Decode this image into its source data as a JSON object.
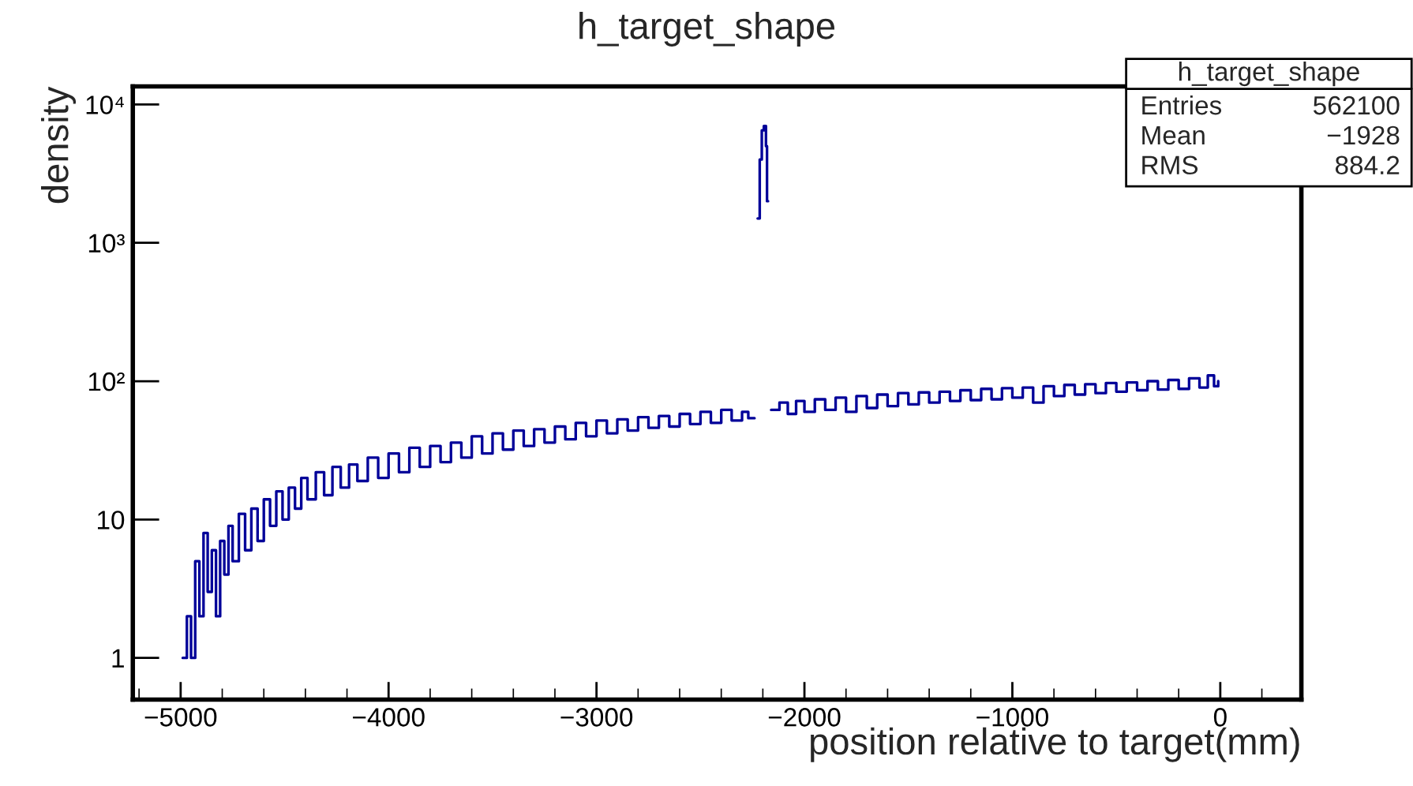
{
  "chart_data": {
    "type": "step",
    "title": "h_target_shape",
    "xlabel": "position relative to target(mm)",
    "ylabel": "density",
    "annotations": [
      "h_target_shape",
      "Entries",
      "562100",
      "Mean",
      "−1928",
      "RMS",
      "884.2"
    ],
    "log": "y",
    "grid": false,
    "legend": false,
    "xlim": [
      -5230,
      390
    ],
    "ylim": [
      0.5,
      13500
    ],
    "xticks": [
      {
        "value": -5000,
        "label": "−5000"
      },
      {
        "value": -4000,
        "label": "−4000"
      },
      {
        "value": -3000,
        "label": "−3000"
      },
      {
        "value": -2000,
        "label": "−2000"
      },
      {
        "value": -1000,
        "label": "−1000"
      },
      0
    ],
    "yticks": [
      1,
      10,
      {
        "value": 100,
        "label": "10²"
      },
      {
        "value": 1000,
        "label": "10³"
      },
      {
        "value": 10000,
        "label": "10⁴"
      }
    ],
    "series": [
      {
        "color": "#000099",
        "x": [
          -4990,
          -4970,
          -4950,
          -4930,
          -4910,
          -4890,
          -4870,
          -4850,
          -4830,
          -4810,
          -4790,
          -4770,
          -4750,
          -4720,
          -4690,
          -4660,
          -4630,
          -4600,
          -4570,
          -4540,
          -4510,
          -4480,
          -4450,
          -4420,
          -4390,
          -4350,
          -4310,
          -4270,
          -4230,
          -4190,
          -4150,
          -4100,
          -4050,
          -4000,
          -3950,
          -3900,
          -3850,
          -3800,
          -3750,
          -3700,
          -3650,
          -3600,
          -3550,
          -3500,
          -3450,
          -3400,
          -3350,
          -3300,
          -3250,
          -3200,
          -3150,
          -3100,
          -3050,
          -3000,
          -2950,
          -2900,
          -2850,
          -2800,
          -2750,
          -2700,
          -2650,
          -2600,
          -2550,
          -2500,
          -2450,
          -2400,
          -2350,
          -2300,
          -2270,
          -2240,
          -2225,
          -2215,
          -2205,
          -2195,
          -2185,
          -2180,
          -2175,
          -2160,
          -2120,
          -2080,
          -2040,
          -2000,
          -1950,
          -1900,
          -1850,
          -1800,
          -1750,
          -1700,
          -1650,
          -1600,
          -1550,
          -1500,
          -1450,
          -1400,
          -1350,
          -1300,
          -1250,
          -1200,
          -1150,
          -1100,
          -1050,
          -1000,
          -950,
          -900,
          -850,
          -800,
          -750,
          -700,
          -650,
          -600,
          -550,
          -500,
          -450,
          -400,
          -350,
          -300,
          -250,
          -200,
          -150,
          -100,
          -60,
          -30,
          -10
        ],
        "values": [
          1,
          2,
          1,
          5,
          2,
          8,
          3,
          6,
          2,
          7,
          4,
          9,
          5,
          11,
          6,
          12,
          7,
          14,
          9,
          16,
          10,
          17,
          12,
          20,
          14,
          22,
          15,
          24,
          17,
          25,
          19,
          28,
          20,
          30,
          22,
          33,
          24,
          34,
          26,
          36,
          28,
          40,
          30,
          42,
          32,
          44,
          34,
          45,
          36,
          47,
          38,
          50,
          40,
          52,
          42,
          53,
          44,
          55,
          46,
          56,
          47,
          58,
          49,
          60,
          50,
          62,
          52,
          60,
          54,
          null,
          1500,
          4000,
          6500,
          7000,
          5000,
          2000,
          null,
          62,
          70,
          58,
          72,
          60,
          74,
          62,
          76,
          60,
          78,
          64,
          80,
          66,
          82,
          68,
          83,
          70,
          84,
          72,
          86,
          73,
          88,
          74,
          89,
          76,
          90,
          70,
          92,
          78,
          94,
          80,
          95,
          82,
          97,
          84,
          98,
          86,
          100,
          87,
          102,
          88,
          105,
          90,
          110,
          92,
          100
        ]
      }
    ]
  }
}
